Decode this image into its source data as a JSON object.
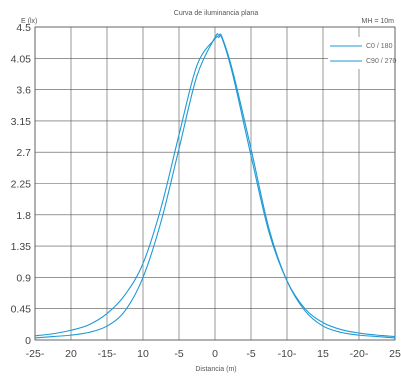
{
  "chart_data": {
    "type": "line",
    "title": "Curva de iluminancia plana",
    "ylabel": "E (lx)",
    "xlabel": "Distancia (m)",
    "annotation": "MH = 10m",
    "grid": true,
    "legend_position": "top-right",
    "line_color": "#1f9ad6",
    "xlim": [
      -25,
      25
    ],
    "ylim": [
      0,
      4.5
    ],
    "x_tick_labels": [
      "-25-",
      "20",
      "-15-",
      "10",
      "-5",
      "0",
      "-5",
      "-10-",
      "15",
      "-20-",
      "25"
    ],
    "y_tick_labels": [
      "0",
      "0.45",
      "0.9",
      "1.35",
      "1.8",
      "2.25",
      "2.7",
      "3.15",
      "3.6",
      "4.05",
      "4.5"
    ],
    "series": [
      {
        "name": "C0 / 180",
        "x": [
          -25,
          -22.5,
          -20,
          -17.5,
          -15,
          -12.5,
          -10,
          -7.5,
          -5,
          -2.5,
          0,
          0.5,
          1,
          2.5,
          5,
          7.5,
          10,
          12.5,
          15,
          17.5,
          20,
          22.5,
          25
        ],
        "y": [
          0.03,
          0.05,
          0.07,
          0.11,
          0.2,
          0.42,
          0.9,
          1.7,
          2.75,
          3.8,
          4.35,
          4.38,
          4.35,
          3.85,
          2.75,
          1.6,
          0.85,
          0.42,
          0.2,
          0.11,
          0.07,
          0.05,
          0.03
        ]
      },
      {
        "name": "C90 / 270",
        "x": [
          -25,
          -22.5,
          -20,
          -17.5,
          -15,
          -12.5,
          -10,
          -7.5,
          -5,
          -2.5,
          0,
          0.5,
          1,
          2.5,
          5,
          7.5,
          10,
          12.5,
          15,
          17.5,
          20,
          22.5,
          25
        ],
        "y": [
          0.06,
          0.09,
          0.14,
          0.22,
          0.38,
          0.65,
          1.1,
          1.9,
          2.95,
          3.95,
          4.33,
          4.35,
          4.33,
          3.8,
          2.65,
          1.55,
          0.85,
          0.45,
          0.25,
          0.15,
          0.1,
          0.07,
          0.05
        ]
      }
    ]
  }
}
